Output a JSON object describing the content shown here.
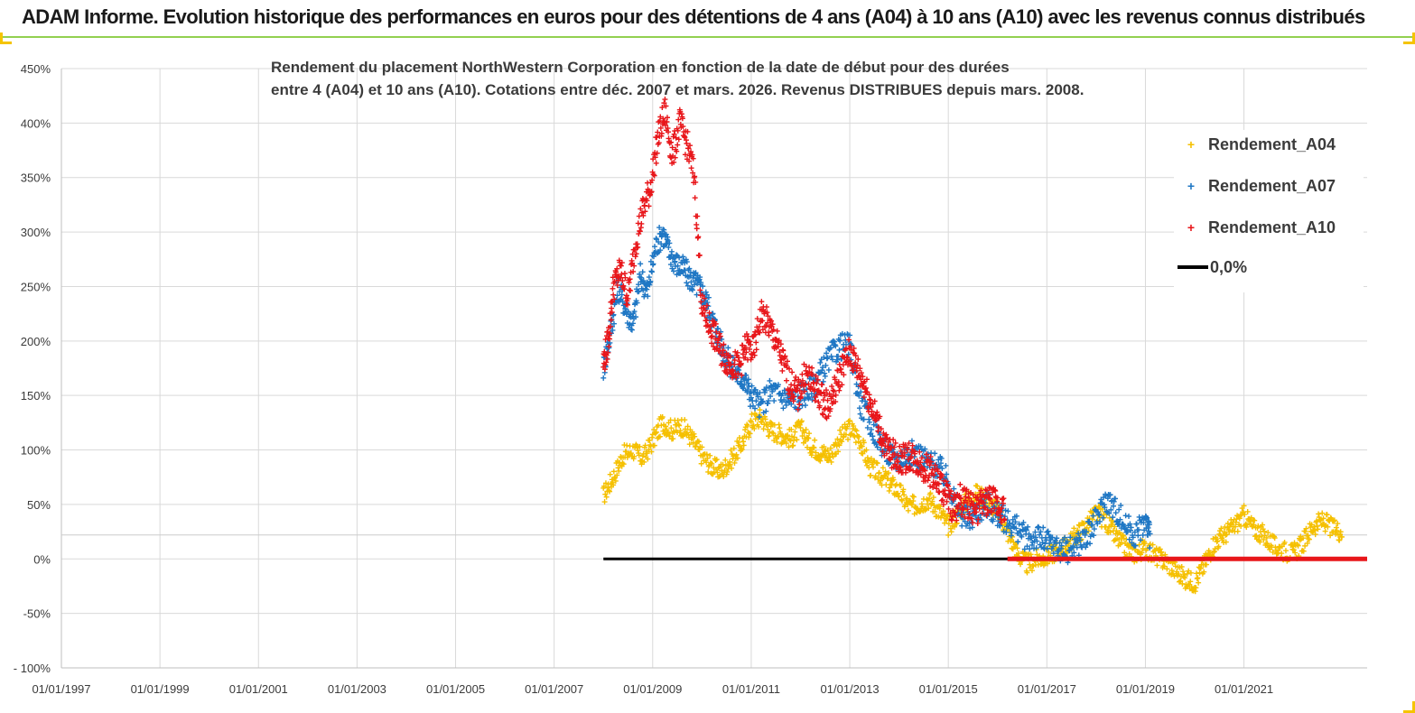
{
  "banner": {
    "title": "ADAM Informe. Evolution historique des performances en euros pour des détentions de 4 ans (A04) à 10 ans (A10) avec les revenus connus distribués"
  },
  "colors": {
    "A04": "#f5c000",
    "A07": "#1f77c4",
    "A10": "#e8161a",
    "zero": "#000000",
    "grid": "#d9d9d9",
    "accent_border": "#92d050"
  },
  "chart_data": {
    "type": "scatter",
    "title_lines": [
      "Rendement du placement NorthWestern Corporation en fonction de la date de début pour des durées",
      "entre 4 (A04) et 10 ans (A10). Cotations entre déc. 2007 et mars. 2026. Revenus DISTRIBUES depuis mars. 2008."
    ],
    "xlabel": "",
    "ylabel": "",
    "y_ticks": [
      "- 100%",
      "-50%",
      "0%",
      "50%",
      "100%",
      "150%",
      "200%",
      "250%",
      "300%",
      "350%",
      "400%",
      "450%"
    ],
    "x_ticks": [
      "01/01/1997",
      "01/01/1999",
      "01/01/2001",
      "01/01/2003",
      "01/01/2005",
      "01/01/2007",
      "01/01/2009",
      "01/01/2011",
      "01/01/2013",
      "01/01/2015",
      "01/01/2017",
      "01/01/2019",
      "01/01/2021"
    ],
    "ylim": [
      -100,
      450
    ],
    "xlim": [
      1997.0,
      2023.5
    ],
    "legend_position": "right",
    "grid": true,
    "series": [
      {
        "name": "Rendement_A04",
        "color_key": "A04",
        "x": [
          2008.0,
          2008.2,
          2008.4,
          2008.6,
          2008.8,
          2009.0,
          2009.2,
          2009.4,
          2009.6,
          2009.8,
          2010.0,
          2010.2,
          2010.4,
          2010.6,
          2010.8,
          2011.0,
          2011.2,
          2011.4,
          2011.6,
          2011.8,
          2012.0,
          2012.2,
          2012.4,
          2012.6,
          2012.8,
          2013.0,
          2013.2,
          2013.4,
          2013.6,
          2013.8,
          2014.0,
          2014.2,
          2014.4,
          2014.6,
          2014.8,
          2015.0,
          2015.2,
          2015.4,
          2015.6,
          2015.8,
          2016.0,
          2016.2,
          2016.4,
          2016.6,
          2016.8,
          2017.0,
          2017.2,
          2017.4,
          2017.6,
          2017.8,
          2018.0,
          2018.2,
          2018.4,
          2018.6,
          2018.8,
          2019.0,
          2019.2,
          2019.4,
          2019.6,
          2019.8,
          2020.0,
          2020.2,
          2020.4,
          2020.6,
          2020.8,
          2021.0,
          2021.2,
          2021.4,
          2021.6,
          2021.8,
          2022.0,
          2022.2,
          2022.4,
          2022.6,
          2022.8,
          2023.0
        ],
        "y": [
          58,
          75,
          95,
          100,
          92,
          108,
          125,
          118,
          122,
          110,
          95,
          85,
          80,
          92,
          105,
          125,
          130,
          118,
          115,
          110,
          120,
          105,
          98,
          95,
          110,
          120,
          110,
          85,
          78,
          70,
          62,
          48,
          50,
          55,
          45,
          30,
          42,
          55,
          60,
          52,
          45,
          25,
          5,
          -5,
          0,
          2,
          8,
          12,
          22,
          30,
          42,
          35,
          20,
          10,
          5,
          10,
          3,
          -2,
          -10,
          -18,
          -22,
          -5,
          15,
          22,
          30,
          40,
          28,
          22,
          12,
          8,
          5,
          15,
          30,
          35,
          28,
          25
        ]
      },
      {
        "name": "Rendement_A07",
        "color_key": "A07",
        "x": [
          2008.0,
          2008.15,
          2008.3,
          2008.45,
          2008.6,
          2008.75,
          2008.9,
          2009.05,
          2009.2,
          2009.35,
          2009.5,
          2009.65,
          2009.8,
          2009.95,
          2010.1,
          2010.25,
          2010.4,
          2010.55,
          2010.7,
          2010.85,
          2011.0,
          2011.2,
          2011.4,
          2011.6,
          2011.8,
          2012.0,
          2012.2,
          2012.4,
          2012.6,
          2012.8,
          2013.0,
          2013.2,
          2013.4,
          2013.6,
          2013.8,
          2014.0,
          2014.2,
          2014.4,
          2014.6,
          2014.8,
          2015.0,
          2015.2,
          2015.4,
          2015.6,
          2015.8,
          2016.0,
          2016.2,
          2016.4,
          2016.6,
          2016.8,
          2017.0,
          2017.2,
          2017.4,
          2017.6,
          2017.8,
          2018.0,
          2018.2,
          2018.4,
          2018.6,
          2018.8,
          2019.0,
          2019.1
        ],
        "y": [
          175,
          210,
          250,
          230,
          215,
          260,
          245,
          285,
          300,
          280,
          270,
          265,
          255,
          250,
          235,
          215,
          195,
          180,
          170,
          165,
          150,
          140,
          155,
          150,
          145,
          150,
          155,
          170,
          185,
          195,
          195,
          145,
          125,
          110,
          95,
          90,
          98,
          95,
          88,
          85,
          70,
          45,
          35,
          45,
          50,
          40,
          35,
          28,
          18,
          20,
          15,
          10,
          8,
          12,
          20,
          35,
          55,
          45,
          30,
          22,
          35,
          20
        ]
      },
      {
        "name": "Rendement_A10",
        "color_key": "A10",
        "x": [
          2008.0,
          2008.1,
          2008.2,
          2008.35,
          2008.5,
          2008.65,
          2008.8,
          2008.95,
          2009.1,
          2009.25,
          2009.4,
          2009.55,
          2009.7,
          2009.85,
          2010.0,
          2010.15,
          2010.3,
          2010.45,
          2010.6,
          2010.75,
          2010.9,
          2011.05,
          2011.2,
          2011.35,
          2011.5,
          2011.65,
          2011.8,
          2011.95,
          2012.1,
          2012.25,
          2012.4,
          2012.55,
          2012.7,
          2012.85,
          2013.0,
          2013.15,
          2013.3,
          2013.45,
          2013.6,
          2013.75,
          2013.9,
          2014.05,
          2014.2,
          2014.35,
          2014.5,
          2014.65,
          2014.8,
          2014.95,
          2015.1,
          2015.25,
          2015.4,
          2015.55,
          2015.7,
          2015.85,
          2016.0,
          2016.15
        ],
        "y": [
          180,
          200,
          250,
          265,
          240,
          290,
          320,
          340,
          385,
          410,
          370,
          400,
          380,
          350,
          230,
          215,
          200,
          185,
          180,
          175,
          195,
          190,
          225,
          215,
          200,
          180,
          160,
          150,
          170,
          160,
          150,
          140,
          155,
          175,
          190,
          175,
          160,
          140,
          120,
          100,
          95,
          90,
          95,
          90,
          85,
          80,
          70,
          60,
          45,
          55,
          50,
          45,
          50,
          55,
          50,
          45
        ]
      },
      {
        "name": "0,0%",
        "color_key": "zero",
        "x": [
          2008.0,
          2023.5
        ],
        "y": [
          0,
          0
        ]
      }
    ],
    "zero_red_segment": {
      "x": [
        2016.2,
        2023.5
      ],
      "y": [
        0,
        0
      ]
    }
  }
}
